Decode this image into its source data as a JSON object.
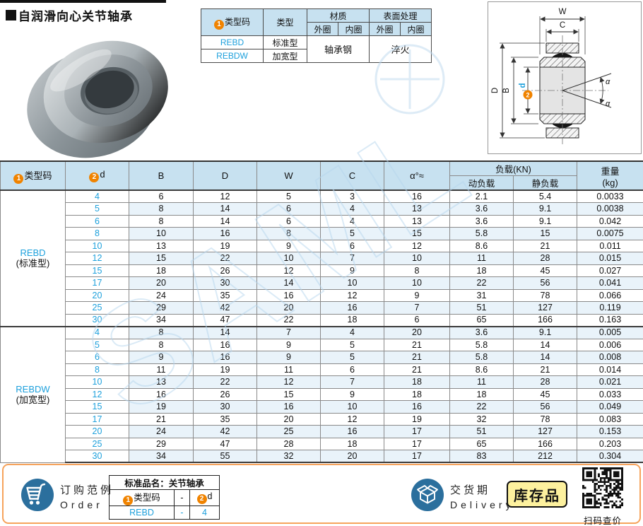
{
  "title": "自润滑向心关节轴承",
  "spec_table": {
    "badge1": "1",
    "col_type_code": "类型码",
    "col_type": "类型",
    "col_material": "材质",
    "col_surface": "表面处理",
    "outer_ring": "外圈",
    "inner_ring": "内圈",
    "rows": [
      {
        "code": "REBD",
        "type": "标准型"
      },
      {
        "code": "REBDW",
        "type": "加宽型"
      }
    ],
    "material_value": "轴承钢",
    "surface_value": "淬火"
  },
  "drawing": {
    "label_w": "W",
    "label_c": "C",
    "label_d_outer": "D",
    "label_b": "B",
    "badge2": "2",
    "label_d_bore": "d",
    "label_alpha_top": "α",
    "label_alpha_bottom": "α"
  },
  "watermark": "SAML",
  "main_table": {
    "badge1": "1",
    "badge2": "2",
    "h_type_code": "类型码",
    "h_d": "d",
    "h_b": "B",
    "h_dd": "D",
    "h_w": "W",
    "h_c": "C",
    "h_alpha": "α°≈",
    "h_load": "负载(KN)",
    "h_dyn": "动负载",
    "h_stat": "静负载",
    "h_weight1": "重量",
    "h_weight2": "(kg)",
    "sections": [
      {
        "code": "REBD",
        "name": "(标准型)",
        "rows": [
          [
            "4",
            "6",
            "12",
            "5",
            "3",
            "16",
            "2.1",
            "5.4",
            "0.0033"
          ],
          [
            "5",
            "8",
            "14",
            "6",
            "4",
            "13",
            "3.6",
            "9.1",
            "0.0038"
          ],
          [
            "6",
            "8",
            "14",
            "6",
            "4",
            "13",
            "3.6",
            "9.1",
            "0.042"
          ],
          [
            "8",
            "10",
            "16",
            "8",
            "5",
            "15",
            "5.8",
            "15",
            "0.0075"
          ],
          [
            "10",
            "13",
            "19",
            "9",
            "6",
            "12",
            "8.6",
            "21",
            "0.011"
          ],
          [
            "12",
            "15",
            "22",
            "10",
            "7",
            "10",
            "11",
            "28",
            "0.015"
          ],
          [
            "15",
            "18",
            "26",
            "12",
            "9",
            "8",
            "18",
            "45",
            "0.027"
          ],
          [
            "17",
            "20",
            "30",
            "14",
            "10",
            "10",
            "22",
            "56",
            "0.041"
          ],
          [
            "20",
            "24",
            "35",
            "16",
            "12",
            "9",
            "31",
            "78",
            "0.066"
          ],
          [
            "25",
            "29",
            "42",
            "20",
            "16",
            "7",
            "51",
            "127",
            "0.119"
          ],
          [
            "30",
            "34",
            "47",
            "22",
            "18",
            "6",
            "65",
            "166",
            "0.163"
          ]
        ]
      },
      {
        "code": "REBDW",
        "name": "(加宽型)",
        "rows": [
          [
            "4",
            "8",
            "14",
            "7",
            "4",
            "20",
            "3.6",
            "9.1",
            "0.005"
          ],
          [
            "5",
            "8",
            "16",
            "9",
            "5",
            "21",
            "5.8",
            "14",
            "0.006"
          ],
          [
            "6",
            "9",
            "16",
            "9",
            "5",
            "21",
            "5.8",
            "14",
            "0.008"
          ],
          [
            "8",
            "11",
            "19",
            "11",
            "6",
            "21",
            "8.6",
            "21",
            "0.014"
          ],
          [
            "10",
            "13",
            "22",
            "12",
            "7",
            "18",
            "11",
            "28",
            "0.021"
          ],
          [
            "12",
            "16",
            "26",
            "15",
            "9",
            "18",
            "18",
            "45",
            "0.033"
          ],
          [
            "15",
            "19",
            "30",
            "16",
            "10",
            "16",
            "22",
            "56",
            "0.049"
          ],
          [
            "17",
            "21",
            "35",
            "20",
            "12",
            "19",
            "32",
            "78",
            "0.083"
          ],
          [
            "20",
            "24",
            "42",
            "25",
            "16",
            "17",
            "51",
            "127",
            "0.153"
          ],
          [
            "25",
            "29",
            "47",
            "28",
            "18",
            "17",
            "65",
            "166",
            "0.203"
          ],
          [
            "30",
            "34",
            "55",
            "32",
            "20",
            "17",
            "83",
            "212",
            "0.304"
          ]
        ]
      }
    ]
  },
  "footer": {
    "order_cn": "订购范例",
    "order_en": "Order",
    "order_table": {
      "title": "标准品名：关节轴承",
      "badge1": "1",
      "col1": "类型码",
      "dash": "-",
      "badge2": "2",
      "col2": "d",
      "val_code": "REBD",
      "val_dash": "-",
      "val_d": "4"
    },
    "delivery_cn": "交货期",
    "delivery_en": "Delivery",
    "stock_badge": "库存品",
    "qr_caption": "扫码查价"
  },
  "colors": {
    "accent_blue": "#1da0dc",
    "badge_orange": "#f08300",
    "header_fill": "#c7e1f0",
    "stripe_fill": "#e9f3fa",
    "footer_border": "#f6a35c",
    "stock_yellow": "#fdf19e",
    "icon_blue": "#2b6f9d"
  }
}
